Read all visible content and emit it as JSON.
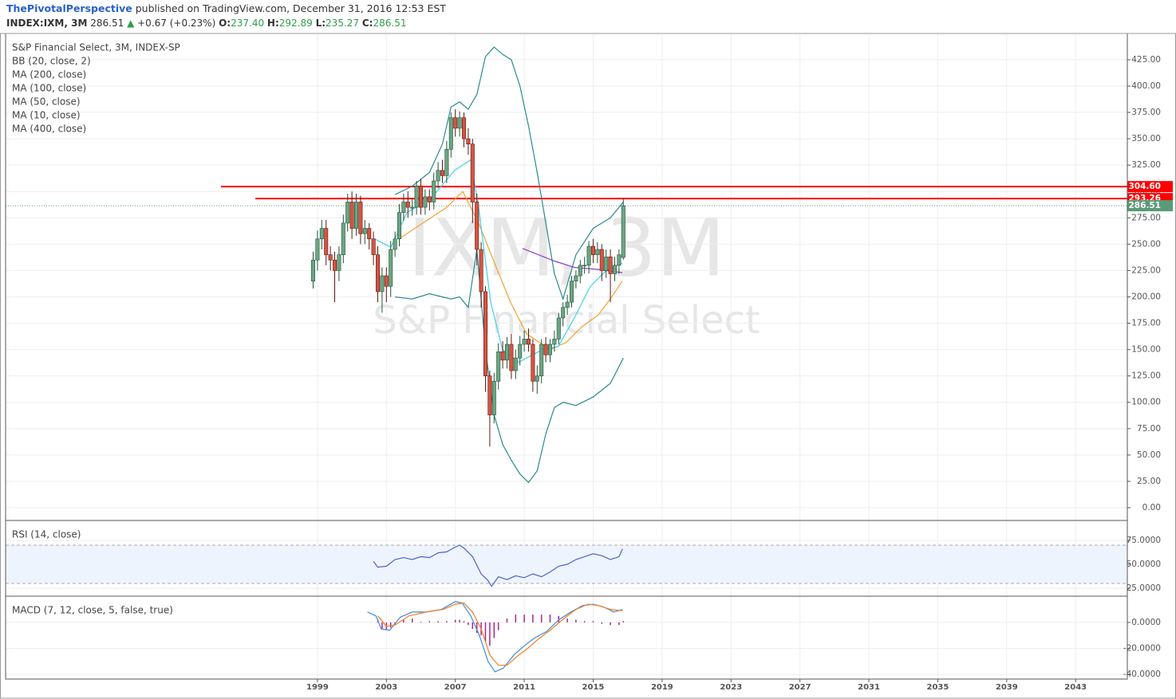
{
  "header": {
    "author": "ThePivotalPerspective",
    "published": "published on TradingView.com, December 31, 2016 12:53 EST",
    "symbol": "INDEX:IXM, 3M",
    "last": "286.51",
    "arrow": "▲",
    "change": "+0.67 (+0.23%)",
    "o_label": "O:",
    "o": "237.40",
    "h_label": "H:",
    "h": "292.89",
    "l_label": "L:",
    "l": "235.27",
    "c_label": "C:",
    "c": "286.51"
  },
  "chart_data": [
    {
      "type": "candlestick",
      "title": "S&P Financial Select, 3M, INDEX-SP",
      "watermark_symbol": "IXM, 3M",
      "watermark_name": "S&P Financial Select",
      "xlim": [
        1980.9,
        2046.0
      ],
      "xticks": [
        1999,
        2003,
        2007,
        2011,
        2015,
        2019,
        2023,
        2027,
        2031,
        2035,
        2039,
        2043
      ],
      "ylim": [
        -12.1,
        449.9
      ],
      "yticks": [
        {
          "value": 0,
          "label": "0.00"
        },
        {
          "value": 25,
          "label": "25.00"
        },
        {
          "value": 50,
          "label": "50.00"
        },
        {
          "value": 75,
          "label": "75.00"
        },
        {
          "value": 100,
          "label": "100.00"
        },
        {
          "value": 125,
          "label": "125.00"
        },
        {
          "value": 150,
          "label": "150.00"
        },
        {
          "value": 175,
          "label": "175.00"
        },
        {
          "value": 200,
          "label": "200.00"
        },
        {
          "value": 225,
          "label": "225.00"
        },
        {
          "value": 250,
          "label": "250.00"
        },
        {
          "value": 275,
          "label": "275.00"
        },
        {
          "value": 300,
          "label": "300.00"
        },
        {
          "value": 325,
          "label": "325.00"
        },
        {
          "value": 350,
          "label": "350.00"
        },
        {
          "value": 375,
          "label": "375.00"
        },
        {
          "value": 400,
          "label": "400.00"
        },
        {
          "value": 425,
          "label": "425.00"
        }
      ],
      "grid": true,
      "up_color": "#6ba583",
      "down_color": "#d75442",
      "x": [
        1998.75,
        1999.0,
        1999.25,
        1999.5,
        1999.75,
        2000.0,
        2000.25,
        2000.5,
        2000.75,
        2001.0,
        2001.25,
        2001.5,
        2001.75,
        2002.0,
        2002.25,
        2002.5,
        2002.75,
        2003.0,
        2003.25,
        2003.5,
        2003.75,
        2004.0,
        2004.25,
        2004.5,
        2004.75,
        2005.0,
        2005.25,
        2005.5,
        2005.75,
        2006.0,
        2006.25,
        2006.5,
        2006.75,
        2007.0,
        2007.25,
        2007.5,
        2007.75,
        2008.0,
        2008.25,
        2008.5,
        2008.75,
        2009.0,
        2009.25,
        2009.5,
        2009.75,
        2010.0,
        2010.25,
        2010.5,
        2010.75,
        2011.0,
        2011.25,
        2011.5,
        2011.75,
        2012.0,
        2012.25,
        2012.5,
        2012.75,
        2013.0,
        2013.25,
        2013.5,
        2013.75,
        2014.0,
        2014.25,
        2014.5,
        2014.75,
        2015.0,
        2015.25,
        2015.5,
        2015.75,
        2016.0,
        2016.25,
        2016.5,
        2016.75
      ],
      "open": [
        215,
        235,
        255,
        265,
        240,
        235,
        225,
        240,
        270,
        290,
        265,
        290,
        260,
        265,
        255,
        240,
        205,
        220,
        210,
        245,
        255,
        280,
        290,
        285,
        285,
        305,
        285,
        295,
        290,
        310,
        320,
        315,
        340,
        370,
        360,
        370,
        350,
        345,
        290,
        245,
        205,
        125,
        88,
        120,
        148,
        140,
        155,
        130,
        142,
        155,
        160,
        155,
        120,
        125,
        155,
        145,
        155,
        160,
        180,
        190,
        195,
        215,
        220,
        230,
        230,
        248,
        240,
        245,
        225,
        238,
        222,
        230,
        237.4
      ],
      "high": [
        243,
        263,
        273,
        273,
        248,
        243,
        248,
        278,
        298,
        300,
        298,
        296,
        273,
        270,
        262,
        248,
        228,
        228,
        253,
        262,
        288,
        298,
        300,
        293,
        310,
        312,
        302,
        302,
        318,
        328,
        330,
        348,
        375,
        378,
        376,
        375,
        360,
        350,
        298,
        252,
        210,
        130,
        128,
        156,
        158,
        162,
        165,
        150,
        163,
        168,
        170,
        160,
        135,
        160,
        162,
        160,
        168,
        185,
        195,
        202,
        220,
        225,
        235,
        238,
        253,
        255,
        252,
        250,
        245,
        245,
        238,
        245,
        292.89
      ],
      "low": [
        208,
        225,
        245,
        230,
        225,
        195,
        215,
        232,
        262,
        255,
        258,
        250,
        250,
        245,
        230,
        195,
        185,
        195,
        200,
        238,
        248,
        272,
        275,
        277,
        278,
        278,
        278,
        282,
        283,
        303,
        308,
        308,
        332,
        352,
        352,
        342,
        335,
        270,
        230,
        190,
        110,
        58,
        80,
        112,
        132,
        132,
        122,
        122,
        135,
        148,
        148,
        110,
        108,
        118,
        138,
        138,
        148,
        155,
        172,
        183,
        190,
        208,
        213,
        222,
        222,
        232,
        232,
        215,
        218,
        195,
        215,
        222,
        235.27
      ],
      "close": [
        235,
        255,
        265,
        240,
        235,
        225,
        240,
        270,
        290,
        265,
        290,
        260,
        265,
        255,
        240,
        205,
        220,
        210,
        245,
        255,
        280,
        290,
        285,
        285,
        305,
        285,
        295,
        290,
        310,
        320,
        315,
        340,
        370,
        360,
        370,
        350,
        345,
        290,
        245,
        205,
        125,
        88,
        120,
        148,
        140,
        155,
        130,
        142,
        155,
        160,
        155,
        120,
        125,
        155,
        145,
        155,
        160,
        180,
        190,
        195,
        215,
        220,
        230,
        230,
        248,
        240,
        245,
        225,
        238,
        222,
        230,
        240,
        286.51
      ],
      "series": [
        {
          "name": "BB (20, close, 2)",
          "color": "#2b8a8f",
          "x": [
            2003.5,
            2004.5,
            2005.5,
            2006.25,
            2006.75,
            2007.25,
            2007.75,
            2008.25,
            2008.75,
            2009.25,
            2009.75,
            2010.25,
            2010.75,
            2011.25,
            2011.75,
            2012.25,
            2012.75,
            2013.25,
            2014.0,
            2015.0,
            2016.0,
            2016.75
          ],
          "upper": [
            297,
            305,
            318,
            345,
            380,
            385,
            378,
            392,
            428,
            437,
            430,
            425,
            400,
            362,
            318,
            270,
            222,
            198,
            240,
            265,
            275,
            290
          ],
          "lower": [
            200,
            198,
            203,
            200,
            198,
            200,
            190,
            245,
            150,
            88,
            60,
            45,
            32,
            24,
            35,
            70,
            95,
            100,
            97,
            105,
            118,
            142
          ]
        },
        {
          "name": "MA (200, close)",
          "color": "#8e3fc8",
          "x": [
            2010.9,
            2011.82,
            2012.75,
            2013.91,
            2015.3,
            2016.69
          ],
          "values": [
            246,
            240,
            234,
            228,
            226,
            223
          ]
        },
        {
          "name": "MA (100, close)"
        },
        {
          "name": "MA (50, close)",
          "color": "#f5a030",
          "x": [
            2003.72,
            2005.11,
            2006.5,
            2007.43,
            2008.35,
            2009.28,
            2010.2,
            2011.13,
            2012.52,
            2013.44,
            2014.37,
            2015.3,
            2015.99,
            2016.69
          ],
          "values": [
            255,
            270,
            285,
            300,
            270,
            232,
            195,
            165,
            150,
            157,
            172,
            183,
            198,
            215
          ]
        },
        {
          "name": "MA (10, close)",
          "color": "#3fd2ea",
          "x": [
            2002.33,
            2003.26,
            2004.19,
            2005.57,
            2006.96,
            2007.89,
            2008.35,
            2009.05,
            2009.74,
            2010.67,
            2012.06,
            2012.98,
            2013.91,
            2014.83,
            2015.76,
            2016.69
          ],
          "values": [
            255,
            247,
            280,
            293,
            320,
            330,
            285,
            195,
            150,
            138,
            150,
            153,
            180,
            210,
            225,
            232
          ]
        },
        {
          "name": "MA (400, close)"
        }
      ],
      "hlines": [
        {
          "value": 304.6,
          "label": "304.60",
          "color": "#ff0000",
          "x_start": 1993.4
        },
        {
          "value": 293.26,
          "label": "293.26",
          "color": "#ff0000",
          "x_start": 1995.4
        }
      ],
      "last_price": {
        "value": 286.51,
        "label": "286.51",
        "color": "#5b9a78"
      }
    },
    {
      "type": "line",
      "title": "RSI (14, close)",
      "ylim": [
        16.7,
        95.8
      ],
      "yticks": [
        {
          "value": 25,
          "label": "25.0000"
        },
        {
          "value": 50,
          "label": "50.0000"
        },
        {
          "value": 75,
          "label": "75.0000"
        }
      ],
      "band": [
        30,
        70
      ],
      "band_color": "#eef4fd",
      "series": [
        {
          "color": "#4a63c8",
          "x": [
            2002.25,
            2002.5,
            2003.0,
            2003.5,
            2004.0,
            2004.5,
            2005.0,
            2005.5,
            2006.0,
            2006.5,
            2007.0,
            2007.25,
            2007.5,
            2008.0,
            2008.5,
            2008.9,
            2009.1,
            2009.5,
            2010.0,
            2010.5,
            2011.0,
            2011.5,
            2012.0,
            2012.5,
            2013.0,
            2013.5,
            2014.0,
            2014.5,
            2015.0,
            2015.5,
            2016.0,
            2016.5,
            2016.7
          ],
          "values": [
            53,
            47,
            48,
            55,
            57,
            55,
            58,
            57,
            62,
            63,
            68,
            70,
            67,
            58,
            40,
            33,
            27,
            37,
            34,
            38,
            36,
            40,
            37,
            42,
            48,
            50,
            55,
            58,
            61,
            59,
            55,
            58,
            66
          ]
        }
      ]
    },
    {
      "type": "line",
      "title": "MACD (7, 12, close, 5, false, true)",
      "ylim": [
        -43.6,
        20.2
      ],
      "yticks": [
        {
          "value": 0,
          "label": "0.0000"
        },
        {
          "value": -20,
          "label": "-20.0000"
        },
        {
          "value": -40,
          "label": "-40.0000"
        }
      ],
      "series": [
        {
          "style": "histogram",
          "color": "#a8268f",
          "x": [
            2002.5,
            2002.75,
            2003.0,
            2003.25,
            2003.5,
            2004.0,
            2004.5,
            2005.0,
            2005.5,
            2006.0,
            2006.5,
            2007.0,
            2007.25,
            2007.5,
            2007.75,
            2008.0,
            2008.25,
            2008.5,
            2008.75,
            2009.0,
            2009.25,
            2009.5,
            2010.0,
            2010.5,
            2011.0,
            2011.5,
            2012.0,
            2012.5,
            2013.0,
            2013.5,
            2014.0,
            2014.5,
            2015.0,
            2015.5,
            2016.0,
            2016.5,
            2016.75
          ],
          "values": [
            2,
            -5,
            -6,
            -4,
            -2,
            2,
            3,
            0.5,
            1,
            1,
            1,
            2,
            2,
            1,
            -2,
            -5,
            -8,
            -10,
            -15,
            -18,
            -12,
            -6,
            3,
            6,
            6,
            6,
            6,
            6,
            5,
            3,
            2,
            1,
            1,
            -1,
            -2,
            -2,
            1
          ]
        },
        {
          "style": "line",
          "color": "#3d8be0",
          "x": [
            2001.9,
            2002.4,
            2002.7,
            2003.2,
            2003.8,
            2004.5,
            2005.3,
            2006.2,
            2007.0,
            2007.4,
            2007.9,
            2008.4,
            2008.9,
            2009.3,
            2009.8,
            2010.4,
            2011.0,
            2011.6,
            2012.3,
            2013.0,
            2013.7,
            2014.4,
            2015.0,
            2015.6,
            2016.2,
            2016.7
          ],
          "values": [
            8,
            5,
            -5,
            -6,
            4,
            8,
            8,
            10,
            16,
            15,
            5,
            -10,
            -30,
            -38,
            -35,
            -25,
            -18,
            -12,
            -7,
            2,
            8,
            13,
            14,
            12,
            8,
            10
          ]
        },
        {
          "style": "line",
          "color": "#f57c20",
          "x": [
            2002.5,
            2003.0,
            2003.5,
            2004.3,
            2005.3,
            2006.3,
            2007.0,
            2007.5,
            2008.0,
            2008.5,
            2009.0,
            2009.5,
            2010.0,
            2010.6,
            2011.2,
            2011.8,
            2012.5,
            2013.3,
            2014.0,
            2014.7,
            2015.3,
            2016.0,
            2016.7
          ],
          "values": [
            5,
            -3,
            -2,
            5,
            8,
            10,
            14,
            15,
            8,
            -5,
            -25,
            -33,
            -33,
            -26,
            -20,
            -13,
            -6,
            3,
            10,
            14,
            13,
            10,
            9
          ]
        }
      ]
    }
  ]
}
